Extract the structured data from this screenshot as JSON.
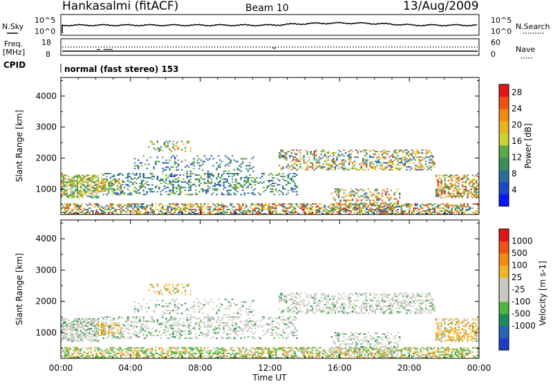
{
  "header": {
    "station": "Hankasalmi (fitACF)",
    "beam": "Beam 10",
    "date": "13/Aug/2009"
  },
  "noise_panel": {
    "left_label": "N.Sky",
    "right_label": "N.Search",
    "left_ticks": [
      "10^5",
      "10^0"
    ],
    "right_ticks": [
      "10^5",
      "10^0"
    ]
  },
  "freq_panel": {
    "left_label_1": "Freq.",
    "left_label_2": "[MHz]",
    "right_label": "Nave",
    "left_ticks": [
      "18",
      "8"
    ],
    "right_ticks": [
      "60",
      "0"
    ],
    "cpid_label": "CPID",
    "cpid_text": "normal (fast stereo) 153"
  },
  "chart_data": [
    {
      "type": "heatmap",
      "title": "Power",
      "ylabel": "Slant Range [km]",
      "ylim": [
        180,
        4600
      ],
      "y_ticks": [
        "1000",
        "2000",
        "3000",
        "4000"
      ],
      "xlim_hours": [
        0,
        24
      ],
      "colorbar": {
        "label": "Power [dB]",
        "ticks": [
          "4",
          "8",
          "12",
          "16",
          "20",
          "24",
          "28"
        ],
        "range": [
          0,
          30
        ],
        "colors": [
          "#0a14ff",
          "#1e46c8",
          "#286e96",
          "#3c8c5a",
          "#5aa846",
          "#c8d232",
          "#e6b41e",
          "#f08c14",
          "#f05014",
          "#e61414"
        ]
      }
    },
    {
      "type": "heatmap",
      "title": "Velocity",
      "ylabel": "Slant Range [km]",
      "ylim": [
        180,
        4600
      ],
      "y_ticks": [
        "1000",
        "2000",
        "3000",
        "4000"
      ],
      "xlim_hours": [
        0,
        24
      ],
      "colorbar": {
        "label": "Velocity [m s-1]",
        "ticks": [
          "1000",
          "500",
          "100",
          "25",
          "-25",
          "-100",
          "-500",
          "-1000"
        ],
        "colors": [
          "#1e3cc8",
          "#2864b4",
          "#1e8c5a",
          "#50b43c",
          "#c8c8c0",
          "#c8c8c0",
          "#f0b428",
          "#f08c14",
          "#f05014",
          "#e61414"
        ]
      },
      "x_ticks": [
        "00:00",
        "04:00",
        "08:00",
        "12:00",
        "16:00",
        "20:00",
        "00:00"
      ],
      "xlabel": "Time UT"
    }
  ]
}
